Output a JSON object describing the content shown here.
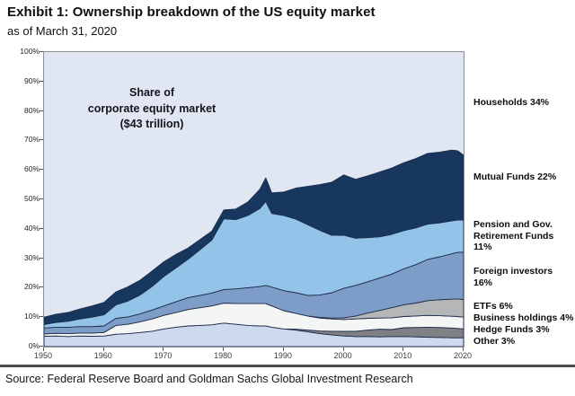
{
  "header": {
    "title": "Exhibit 1: Ownership breakdown of the US equity market",
    "subtitle": "as of March 31, 2020"
  },
  "annotation": "Share of\ncorporate equity market\n($43 trillion)",
  "source": "Source: Federal Reserve Board and Goldman Sachs Global Investment Research",
  "chart_data": {
    "type": "area",
    "stacked": true,
    "title": "Share of corporate equity market ($43 trillion)",
    "xlabel": "",
    "ylabel": "",
    "xlim": [
      1950,
      2020
    ],
    "ylim": [
      0,
      100
    ],
    "grid": false,
    "outline_color": "#1f2e4a",
    "x_ticks": [
      1950,
      1960,
      1970,
      1980,
      1990,
      2000,
      2010,
      2020
    ],
    "y_ticks": [
      "0%",
      "10%",
      "20%",
      "30%",
      "40%",
      "50%",
      "60%",
      "70%",
      "80%",
      "90%",
      "100%"
    ],
    "x": [
      1950,
      1952,
      1954,
      1956,
      1958,
      1960,
      1962,
      1964,
      1966,
      1968,
      1970,
      1972,
      1974,
      1976,
      1978,
      1980,
      1982,
      1984,
      1986,
      1987,
      1988,
      1990,
      1992,
      1994,
      1996,
      1998,
      2000,
      2002,
      2004,
      2006,
      2008,
      2010,
      2012,
      2014,
      2016,
      2018,
      2019,
      2020
    ],
    "series": [
      {
        "id": "other",
        "name": "Other",
        "final_share_label": "3%",
        "color": "#cdd9ed",
        "values": [
          3.5,
          3.6,
          3.4,
          3.6,
          3.5,
          3.6,
          4.2,
          4.4,
          4.8,
          5.2,
          6.0,
          6.6,
          7.0,
          7.2,
          7.4,
          8.0,
          7.6,
          7.2,
          7.0,
          7.0,
          6.6,
          6.0,
          5.6,
          5.0,
          4.4,
          4.0,
          3.6,
          3.4,
          3.4,
          3.3,
          3.4,
          3.4,
          3.3,
          3.2,
          3.1,
          3.0,
          3.0,
          3.0
        ]
      },
      {
        "id": "hedge-funds",
        "name": "Hedge Funds",
        "final_share_label": "3%",
        "color": "#7e8083",
        "values": [
          0,
          0,
          0,
          0,
          0,
          0,
          0,
          0,
          0,
          0,
          0,
          0,
          0,
          0,
          0,
          0,
          0,
          0,
          0,
          0,
          0,
          0,
          0.3,
          0.6,
          0.9,
          1.2,
          1.6,
          1.8,
          2.2,
          2.6,
          2.4,
          3.0,
          3.2,
          3.4,
          3.4,
          3.3,
          3.2,
          3.0
        ]
      },
      {
        "id": "business-holdings",
        "name": "Business holdings",
        "final_share_label": "4%",
        "color": "#f4f5f5",
        "values": [
          0.8,
          0.9,
          1.0,
          1.0,
          1.1,
          1.2,
          3.0,
          3.2,
          3.6,
          4.2,
          4.6,
          5.0,
          5.6,
          6.0,
          6.4,
          6.8,
          7.0,
          7.4,
          7.6,
          7.6,
          7.2,
          6.2,
          5.4,
          4.8,
          4.4,
          4.2,
          4.0,
          4.2,
          4.0,
          3.8,
          4.0,
          3.8,
          3.9,
          4.0,
          4.0,
          4.0,
          4.0,
          4.0
        ]
      },
      {
        "id": "etfs",
        "name": "ETFs",
        "final_share_label": "6%",
        "color": "#b4b6b8",
        "values": [
          0,
          0,
          0,
          0,
          0,
          0,
          0,
          0,
          0,
          0,
          0,
          0,
          0,
          0,
          0,
          0,
          0,
          0,
          0,
          0,
          0,
          0,
          0,
          0,
          0.2,
          0.3,
          0.6,
          1.0,
          1.8,
          2.6,
          3.4,
          4.0,
          4.4,
          5.0,
          5.4,
          5.8,
          6.0,
          6.0
        ]
      },
      {
        "id": "foreign-investors",
        "name": "Foreign investors",
        "final_share_label": "16%",
        "color": "#7d9cc8",
        "values": [
          2.0,
          2.1,
          2.2,
          2.2,
          2.2,
          2.2,
          2.4,
          2.5,
          2.7,
          3.0,
          3.2,
          3.6,
          4.0,
          4.2,
          4.4,
          4.6,
          5.0,
          5.4,
          5.8,
          6.2,
          6.4,
          6.8,
          7.0,
          7.0,
          7.6,
          8.6,
          10.0,
          10.4,
          10.6,
          11.0,
          11.4,
          12.2,
          13.0,
          14.0,
          14.6,
          15.4,
          15.8,
          16.0
        ]
      },
      {
        "id": "pension-gov-retirement",
        "name": "Pension and Gov. Retirement Funds",
        "final_share_label": "11%",
        "color": "#93c3e9",
        "values": [
          1.2,
          1.6,
          2.0,
          2.6,
          3.2,
          3.8,
          4.6,
          5.4,
          6.4,
          8.0,
          10.0,
          11.5,
          13.0,
          15.5,
          18.0,
          24.0,
          23.5,
          24.5,
          26.5,
          28.5,
          25.0,
          25.5,
          25.0,
          24.0,
          22.0,
          19.5,
          18.0,
          16.0,
          15.0,
          14.0,
          13.5,
          13.0,
          12.5,
          12.0,
          11.5,
          11.2,
          11.0,
          11.0
        ]
      },
      {
        "id": "mutual-funds",
        "name": "Mutual Funds",
        "final_share_label": "22%",
        "color": "#17375e",
        "values": [
          2.5,
          2.8,
          3.0,
          3.4,
          3.8,
          4.2,
          4.4,
          4.8,
          5.0,
          5.2,
          5.0,
          4.6,
          3.8,
          3.4,
          3.0,
          3.0,
          3.6,
          4.6,
          6.5,
          8.0,
          7.0,
          8.0,
          10.5,
          13.0,
          15.5,
          18.0,
          20.5,
          20.0,
          21.0,
          22.0,
          22.5,
          23.0,
          23.5,
          24.0,
          24.0,
          24.0,
          23.5,
          22.0
        ]
      }
    ],
    "households": {
      "id": "households",
      "name": "Households",
      "final_share_label": "34%",
      "color": "#e0e7f3",
      "note": "remainder to 100%, drawn as plot background"
    },
    "legend": [
      {
        "id": "households",
        "label": "Households 34%"
      },
      {
        "id": "mutual-funds",
        "label": "Mutual Funds 22%"
      },
      {
        "id": "pension-gov-retirement",
        "label": "Pension and Gov.\nRetirement Funds 11%"
      },
      {
        "id": "foreign-investors",
        "label": "Foreign investors 16%"
      },
      {
        "id": "etfs",
        "label": "ETFs 6%"
      },
      {
        "id": "business-holdings",
        "label": "Business holdings 4%"
      },
      {
        "id": "hedge-funds",
        "label": "Hedge Funds 3%"
      },
      {
        "id": "other",
        "label": "Other 3%"
      }
    ]
  }
}
